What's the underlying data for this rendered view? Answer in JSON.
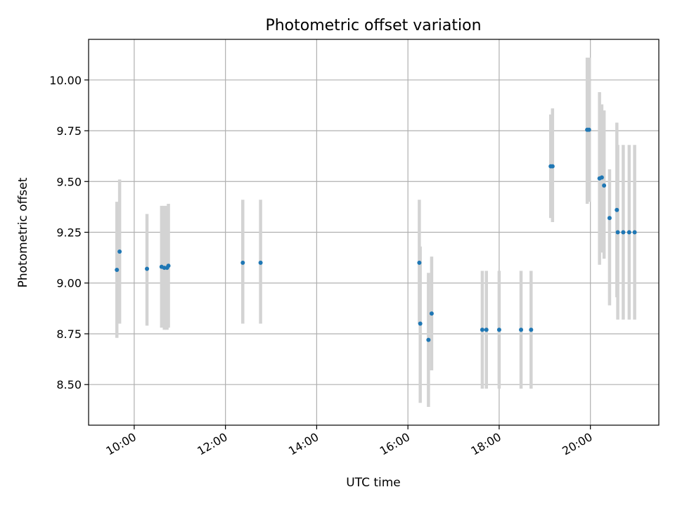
{
  "chart_data": {
    "type": "scatter",
    "title": "Photometric offset variation",
    "xlabel": "UTC time",
    "ylabel": "Photometric offset",
    "x_unit": "hours UTC",
    "xlim": [
      9.0,
      21.5
    ],
    "ylim": [
      8.3,
      10.2
    ],
    "grid": true,
    "x_ticks": [
      {
        "value": 10,
        "label": "10:00"
      },
      {
        "value": 12,
        "label": "12:00"
      },
      {
        "value": 14,
        "label": "14:00"
      },
      {
        "value": 16,
        "label": "16:00"
      },
      {
        "value": 18,
        "label": "18:00"
      },
      {
        "value": 20,
        "label": "20:00"
      }
    ],
    "y_ticks": [
      {
        "value": 8.5,
        "label": "8.50"
      },
      {
        "value": 8.75,
        "label": "8.75"
      },
      {
        "value": 9.0,
        "label": "9.00"
      },
      {
        "value": 9.25,
        "label": "9.25"
      },
      {
        "value": 9.5,
        "label": "9.50"
      },
      {
        "value": 9.75,
        "label": "9.75"
      },
      {
        "value": 10.0,
        "label": "10.00"
      }
    ],
    "marker_color": "#1f77b4",
    "errorbar_color": "#d3d3d3",
    "points": [
      {
        "x": 9.62,
        "y": 9.065,
        "low": 8.73,
        "high": 9.4
      },
      {
        "x": 9.68,
        "y": 9.155,
        "low": 8.8,
        "high": 9.51
      },
      {
        "x": 10.28,
        "y": 9.07,
        "low": 8.79,
        "high": 9.34
      },
      {
        "x": 10.6,
        "y": 9.08,
        "low": 8.78,
        "high": 9.38
      },
      {
        "x": 10.66,
        "y": 9.075,
        "low": 8.77,
        "high": 9.38
      },
      {
        "x": 10.72,
        "y": 9.075,
        "low": 8.77,
        "high": 9.38
      },
      {
        "x": 10.75,
        "y": 9.085,
        "low": 8.78,
        "high": 9.39
      },
      {
        "x": 12.38,
        "y": 9.1,
        "low": 8.8,
        "high": 9.41
      },
      {
        "x": 12.77,
        "y": 9.1,
        "low": 8.8,
        "high": 9.41
      },
      {
        "x": 16.25,
        "y": 9.1,
        "low": 8.8,
        "high": 9.41
      },
      {
        "x": 16.27,
        "y": 8.8,
        "low": 8.41,
        "high": 9.18
      },
      {
        "x": 16.45,
        "y": 8.72,
        "low": 8.39,
        "high": 9.05
      },
      {
        "x": 16.52,
        "y": 8.85,
        "low": 8.57,
        "high": 9.13
      },
      {
        "x": 17.63,
        "y": 8.77,
        "low": 8.48,
        "high": 9.06
      },
      {
        "x": 17.72,
        "y": 8.77,
        "low": 8.48,
        "high": 9.06
      },
      {
        "x": 18.0,
        "y": 8.77,
        "low": 8.48,
        "high": 9.06
      },
      {
        "x": 18.48,
        "y": 8.77,
        "low": 8.48,
        "high": 9.06
      },
      {
        "x": 18.7,
        "y": 8.77,
        "low": 8.48,
        "high": 9.06
      },
      {
        "x": 19.13,
        "y": 9.575,
        "low": 9.32,
        "high": 9.83
      },
      {
        "x": 19.17,
        "y": 9.575,
        "low": 9.3,
        "high": 9.86
      },
      {
        "x": 19.93,
        "y": 9.755,
        "low": 9.39,
        "high": 10.11
      },
      {
        "x": 19.97,
        "y": 9.755,
        "low": 9.4,
        "high": 10.11
      },
      {
        "x": 20.2,
        "y": 9.515,
        "low": 9.09,
        "high": 9.94
      },
      {
        "x": 20.25,
        "y": 9.52,
        "low": 9.15,
        "high": 9.88
      },
      {
        "x": 20.3,
        "y": 9.48,
        "low": 9.12,
        "high": 9.85
      },
      {
        "x": 20.42,
        "y": 9.32,
        "low": 8.89,
        "high": 9.56
      },
      {
        "x": 20.58,
        "y": 9.36,
        "low": 8.93,
        "high": 9.79
      },
      {
        "x": 20.6,
        "y": 9.25,
        "low": 8.82,
        "high": 9.68
      },
      {
        "x": 20.72,
        "y": 9.25,
        "low": 8.82,
        "high": 9.68
      },
      {
        "x": 20.85,
        "y": 9.25,
        "low": 8.82,
        "high": 9.68
      },
      {
        "x": 20.97,
        "y": 9.25,
        "low": 8.82,
        "high": 9.68
      }
    ]
  }
}
